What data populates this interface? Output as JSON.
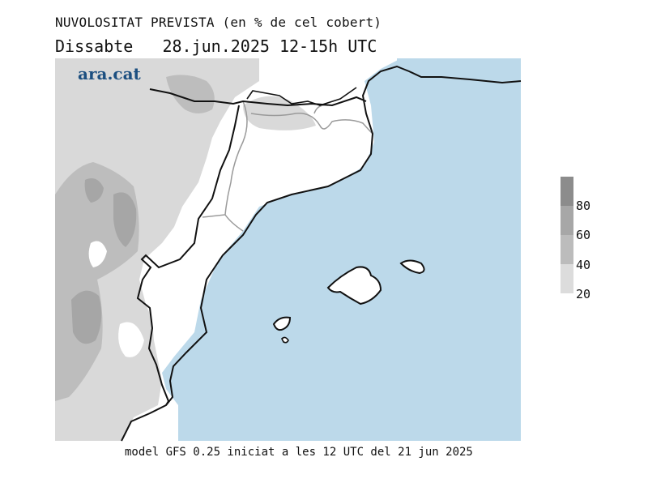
{
  "header": {
    "title": "NUVOLOSITAT PREVISTA (en % de cel cobert)",
    "subtitle": "Dissabte   28.jun.2025 12-15h UTC",
    "brand": "ara.cat"
  },
  "footer": {
    "model_note": "model GFS 0.25 iniciat a les 12 UTC del 21 jun 2025"
  },
  "legend": {
    "bands": [
      {
        "label": "20",
        "color": "#dcdcdc"
      },
      {
        "label": "40",
        "color": "#c8c8c8"
      },
      {
        "label": "60",
        "color": "#b4b4b4"
      },
      {
        "label": "80",
        "color": "#9f9f9f"
      }
    ],
    "top_color": "#8c8c8c"
  },
  "colors": {
    "sea": "#bcd9ea",
    "land": "#ffffff",
    "cloud_light": "#d9d9d9",
    "cloud_mid": "#bdbdbd",
    "cloud_dark": "#a6a6a6",
    "border_line": "#111111",
    "region_line": "#9a9a9a"
  }
}
